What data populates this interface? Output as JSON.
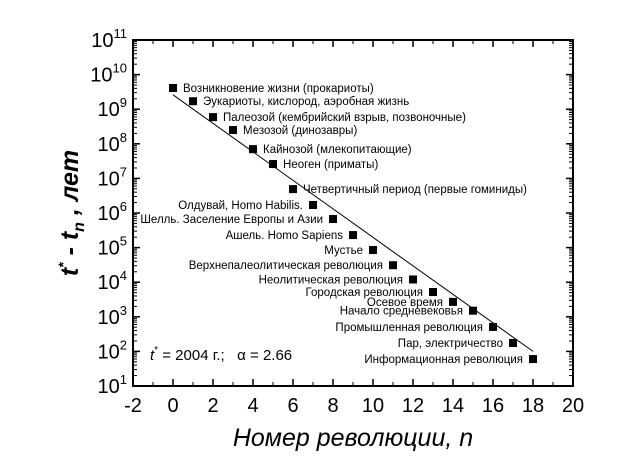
{
  "chart_data": {
    "type": "scatter",
    "xlabel": "Номер революции, n",
    "ylabel_parts": {
      "t": "t",
      "star": "*",
      "minus": " - t",
      "sub": "n",
      "rest": " , лет"
    },
    "xlim": [
      -2,
      20
    ],
    "ylim": [
      10,
      100000000000
    ],
    "y_scale": "log",
    "x_ticks": [
      "-2",
      "0",
      "2",
      "4",
      "6",
      "8",
      "10",
      "12",
      "14",
      "16",
      "18",
      "20"
    ],
    "y_ticks": [
      {
        "base": "10",
        "exp": "1"
      },
      {
        "base": "10",
        "exp": "2"
      },
      {
        "base": "10",
        "exp": "3"
      },
      {
        "base": "10",
        "exp": "4"
      },
      {
        "base": "10",
        "exp": "5"
      },
      {
        "base": "10",
        "exp": "6"
      },
      {
        "base": "10",
        "exp": "7"
      },
      {
        "base": "10",
        "exp": "8"
      },
      {
        "base": "10",
        "exp": "9"
      },
      {
        "base": "10",
        "exp": "10"
      },
      {
        "base": "10",
        "exp": "11"
      }
    ],
    "annotation": {
      "t": "t",
      "star": "*",
      "rest": " = 2004 г.;   α = 2.66"
    },
    "marker_color": "#000000",
    "points": [
      {
        "x": 0,
        "y": 4100000000,
        "label": "Возникновение жизни (прокариоты)"
      },
      {
        "x": 1,
        "y": 1700000000,
        "label": "Эукариоты, кислород, аэробная жизнь"
      },
      {
        "x": 2,
        "y": 590000000,
        "label": "Палеозой (кембрийский взрыв, позвоночные)"
      },
      {
        "x": 3,
        "y": 250000000,
        "label": "Мезозой (динозавры)"
      },
      {
        "x": 4,
        "y": 70000000,
        "label": "Кайнозой (млекопитающие)"
      },
      {
        "x": 5,
        "y": 26000000,
        "label": "Неоген (приматы)"
      },
      {
        "x": 6,
        "y": 4900000,
        "label": "Четвертичный период (первые гоминиды)"
      },
      {
        "x": 7,
        "y": 1700000,
        "label": "Олдувай, Homo Habilis."
      },
      {
        "x": 8,
        "y": 670000,
        "label": "Шелль. Заселение Европы и Азии"
      },
      {
        "x": 9,
        "y": 230000,
        "label": "Ашель. Homo Sapiens"
      },
      {
        "x": 10,
        "y": 85000,
        "label": "Мустье"
      },
      {
        "x": 11,
        "y": 31000,
        "label": "Верхнепалеолитическая революция"
      },
      {
        "x": 12,
        "y": 12000,
        "label": "Неолитическая революция"
      },
      {
        "x": 13,
        "y": 5200,
        "label": "Городская революция"
      },
      {
        "x": 14,
        "y": 2700,
        "label": "Осевое время"
      },
      {
        "x": 15,
        "y": 1500,
        "label": "Начало средневековья"
      },
      {
        "x": 16,
        "y": 510,
        "label": "Промышленная революция"
      },
      {
        "x": 17,
        "y": 175,
        "label": "Пар, электричество"
      },
      {
        "x": 18,
        "y": 60,
        "label": "Информационная революция"
      }
    ],
    "fit_line": {
      "x": [
        0,
        18
      ],
      "y": [
        2600000000,
        100
      ]
    }
  }
}
